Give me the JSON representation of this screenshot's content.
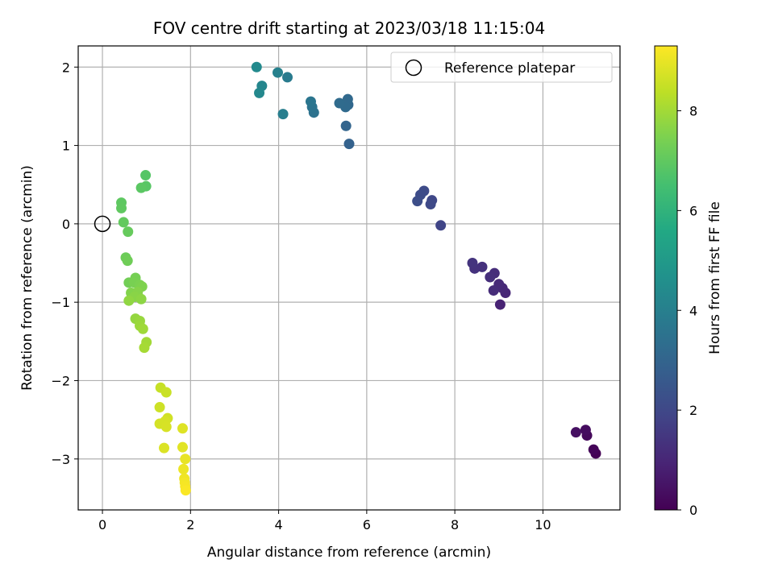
{
  "chart_data": {
    "type": "scatter",
    "title": "FOV centre drift starting at 2023/03/18 11:15:04",
    "xlabel": "Angular distance from reference (arcmin)",
    "ylabel": "Rotation from reference (arcmin)",
    "xlim": [
      -0.55,
      11.75
    ],
    "ylim": [
      -3.65,
      2.27
    ],
    "xticks": [
      0,
      2,
      4,
      6,
      8,
      10
    ],
    "yticks": [
      -3,
      -2,
      -1,
      0,
      1,
      2
    ],
    "grid": true,
    "legend": {
      "position": "top-right",
      "entries": [
        "Reference platepar"
      ]
    },
    "reference_point": {
      "x": 0,
      "y": 0
    },
    "colorbar": {
      "label": "Hours from first FF file",
      "min": 0,
      "max": 9.3,
      "ticks": [
        0,
        2,
        4,
        6,
        8
      ],
      "colormap": "viridis"
    },
    "points": [
      {
        "x": 11.2,
        "y": -2.93,
        "c": 0.0
      },
      {
        "x": 11.15,
        "y": -2.88,
        "c": 0.1
      },
      {
        "x": 11.0,
        "y": -2.7,
        "c": 0.2
      },
      {
        "x": 10.97,
        "y": -2.63,
        "c": 0.3
      },
      {
        "x": 10.75,
        "y": -2.66,
        "c": 0.4
      },
      {
        "x": 9.03,
        "y": -1.03,
        "c": 0.9
      },
      {
        "x": 9.15,
        "y": -0.88,
        "c": 1.0
      },
      {
        "x": 9.08,
        "y": -0.82,
        "c": 1.05
      },
      {
        "x": 9.0,
        "y": -0.77,
        "c": 1.1
      },
      {
        "x": 8.88,
        "y": -0.85,
        "c": 1.15
      },
      {
        "x": 8.9,
        "y": -0.63,
        "c": 1.2
      },
      {
        "x": 8.8,
        "y": -0.68,
        "c": 1.25
      },
      {
        "x": 8.62,
        "y": -0.55,
        "c": 1.3
      },
      {
        "x": 8.45,
        "y": -0.57,
        "c": 1.35
      },
      {
        "x": 8.4,
        "y": -0.5,
        "c": 1.4
      },
      {
        "x": 7.68,
        "y": -0.02,
        "c": 1.9
      },
      {
        "x": 7.48,
        "y": 0.3,
        "c": 2.0
      },
      {
        "x": 7.45,
        "y": 0.25,
        "c": 2.05
      },
      {
        "x": 7.3,
        "y": 0.42,
        "c": 2.1
      },
      {
        "x": 7.22,
        "y": 0.37,
        "c": 2.15
      },
      {
        "x": 7.15,
        "y": 0.29,
        "c": 2.2
      },
      {
        "x": 5.6,
        "y": 1.02,
        "c": 2.9
      },
      {
        "x": 5.53,
        "y": 1.25,
        "c": 3.0
      },
      {
        "x": 5.58,
        "y": 1.52,
        "c": 3.1
      },
      {
        "x": 5.57,
        "y": 1.59,
        "c": 3.15
      },
      {
        "x": 5.52,
        "y": 1.49,
        "c": 3.2
      },
      {
        "x": 5.38,
        "y": 1.54,
        "c": 3.25
      },
      {
        "x": 4.8,
        "y": 1.42,
        "c": 3.5
      },
      {
        "x": 4.76,
        "y": 1.49,
        "c": 3.55
      },
      {
        "x": 4.73,
        "y": 1.56,
        "c": 3.6
      },
      {
        "x": 4.2,
        "y": 1.87,
        "c": 3.85
      },
      {
        "x": 4.1,
        "y": 1.4,
        "c": 3.95
      },
      {
        "x": 3.98,
        "y": 1.93,
        "c": 4.05
      },
      {
        "x": 3.62,
        "y": 1.76,
        "c": 4.25
      },
      {
        "x": 3.56,
        "y": 1.67,
        "c": 4.3
      },
      {
        "x": 3.5,
        "y": 2.0,
        "c": 4.4
      },
      {
        "x": 0.98,
        "y": 0.62,
        "c": 6.8
      },
      {
        "x": 0.99,
        "y": 0.48,
        "c": 6.85
      },
      {
        "x": 0.88,
        "y": 0.46,
        "c": 6.9
      },
      {
        "x": 0.43,
        "y": 0.27,
        "c": 6.95
      },
      {
        "x": 0.43,
        "y": 0.2,
        "c": 7.0
      },
      {
        "x": 0.48,
        "y": 0.02,
        "c": 7.05
      },
      {
        "x": 0.58,
        "y": -0.1,
        "c": 7.1
      },
      {
        "x": 0.53,
        "y": -0.43,
        "c": 7.2
      },
      {
        "x": 0.57,
        "y": -0.47,
        "c": 7.25
      },
      {
        "x": 0.6,
        "y": -0.75,
        "c": 7.3
      },
      {
        "x": 0.75,
        "y": -0.69,
        "c": 7.35
      },
      {
        "x": 0.72,
        "y": -0.75,
        "c": 7.4
      },
      {
        "x": 0.85,
        "y": -0.78,
        "c": 7.45
      },
      {
        "x": 0.9,
        "y": -0.8,
        "c": 7.5
      },
      {
        "x": 0.65,
        "y": -0.88,
        "c": 7.55
      },
      {
        "x": 0.8,
        "y": -0.87,
        "c": 7.6
      },
      {
        "x": 0.73,
        "y": -0.93,
        "c": 7.65
      },
      {
        "x": 0.88,
        "y": -0.96,
        "c": 7.7
      },
      {
        "x": 0.6,
        "y": -0.98,
        "c": 7.75
      },
      {
        "x": 0.75,
        "y": -1.21,
        "c": 7.8
      },
      {
        "x": 0.85,
        "y": -1.24,
        "c": 7.85
      },
      {
        "x": 0.85,
        "y": -1.3,
        "c": 7.9
      },
      {
        "x": 0.92,
        "y": -1.34,
        "c": 7.95
      },
      {
        "x": 1.0,
        "y": -1.51,
        "c": 8.0
      },
      {
        "x": 0.95,
        "y": -1.58,
        "c": 8.05
      },
      {
        "x": 1.32,
        "y": -2.09,
        "c": 8.5
      },
      {
        "x": 1.45,
        "y": -2.15,
        "c": 8.55
      },
      {
        "x": 1.3,
        "y": -2.34,
        "c": 8.6
      },
      {
        "x": 1.48,
        "y": -2.48,
        "c": 8.65
      },
      {
        "x": 1.3,
        "y": -2.55,
        "c": 8.7
      },
      {
        "x": 1.42,
        "y": -2.52,
        "c": 8.72
      },
      {
        "x": 1.45,
        "y": -2.59,
        "c": 8.75
      },
      {
        "x": 1.4,
        "y": -2.86,
        "c": 8.8
      },
      {
        "x": 1.82,
        "y": -2.61,
        "c": 8.85
      },
      {
        "x": 1.82,
        "y": -2.85,
        "c": 8.9
      },
      {
        "x": 1.88,
        "y": -3.0,
        "c": 9.0
      },
      {
        "x": 1.84,
        "y": -3.13,
        "c": 9.05
      },
      {
        "x": 1.86,
        "y": -3.25,
        "c": 9.1
      },
      {
        "x": 1.87,
        "y": -3.3,
        "c": 9.15
      },
      {
        "x": 1.88,
        "y": -3.35,
        "c": 9.2
      },
      {
        "x": 1.89,
        "y": -3.4,
        "c": 9.25
      }
    ]
  }
}
